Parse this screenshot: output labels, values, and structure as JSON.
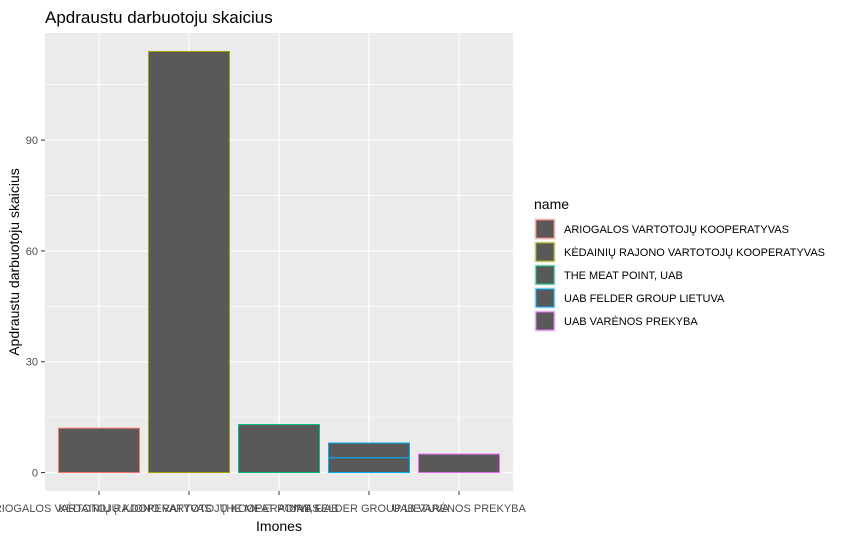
{
  "chart_data": {
    "type": "bar",
    "title": "Apdraustu darbuotoju skaicius",
    "xlabel": "Imones",
    "ylabel": "Apdraustu darbuotoju skaicius",
    "ylim": [
      -5,
      119
    ],
    "yticks": [
      0,
      30,
      60,
      90
    ],
    "grid": true,
    "legend_title": "name",
    "legend_position": "right",
    "categories": [
      "ARIOGALOS VARTOTOJŲ KOOPERATYVAS",
      "KĖDAINIŲ RAJONO VARTOTOJŲ KOOPERATYVAS",
      "THE MEAT POINT, UAB",
      "UAB FELDER GROUP LIETUVA",
      "UAB VARĖNOS PREKYBA"
    ],
    "series": [
      {
        "name": "ARIOGALOS VARTOTOJŲ KOOPERATYVAS",
        "color": "#F8766D",
        "values": [
          12,
          0,
          0,
          0,
          0
        ]
      },
      {
        "name": "KĖDAINIŲ RAJONO VARTOTOJŲ KOOPERATYVAS",
        "color": "#A3A500",
        "values": [
          0,
          114,
          0,
          0,
          0
        ]
      },
      {
        "name": "THE MEAT POINT, UAB",
        "color": "#00BF7D",
        "values": [
          0,
          0,
          13,
          0,
          0
        ]
      },
      {
        "name": "UAB FELDER GROUP LIETUVA",
        "color": "#00B0F6",
        "values": [
          0,
          0,
          0,
          8,
          0
        ]
      },
      {
        "name": "UAB VARĖNOS PREKYBA",
        "color": "#E76BF3",
        "values": [
          0,
          0,
          0,
          0,
          5
        ]
      }
    ],
    "stack_segments": [
      {
        "category": "UAB FELDER GROUP LIETUVA",
        "values": [
          4,
          4
        ]
      }
    ],
    "bar_fill": "#595959",
    "panel_background": "#EBEBEB"
  }
}
